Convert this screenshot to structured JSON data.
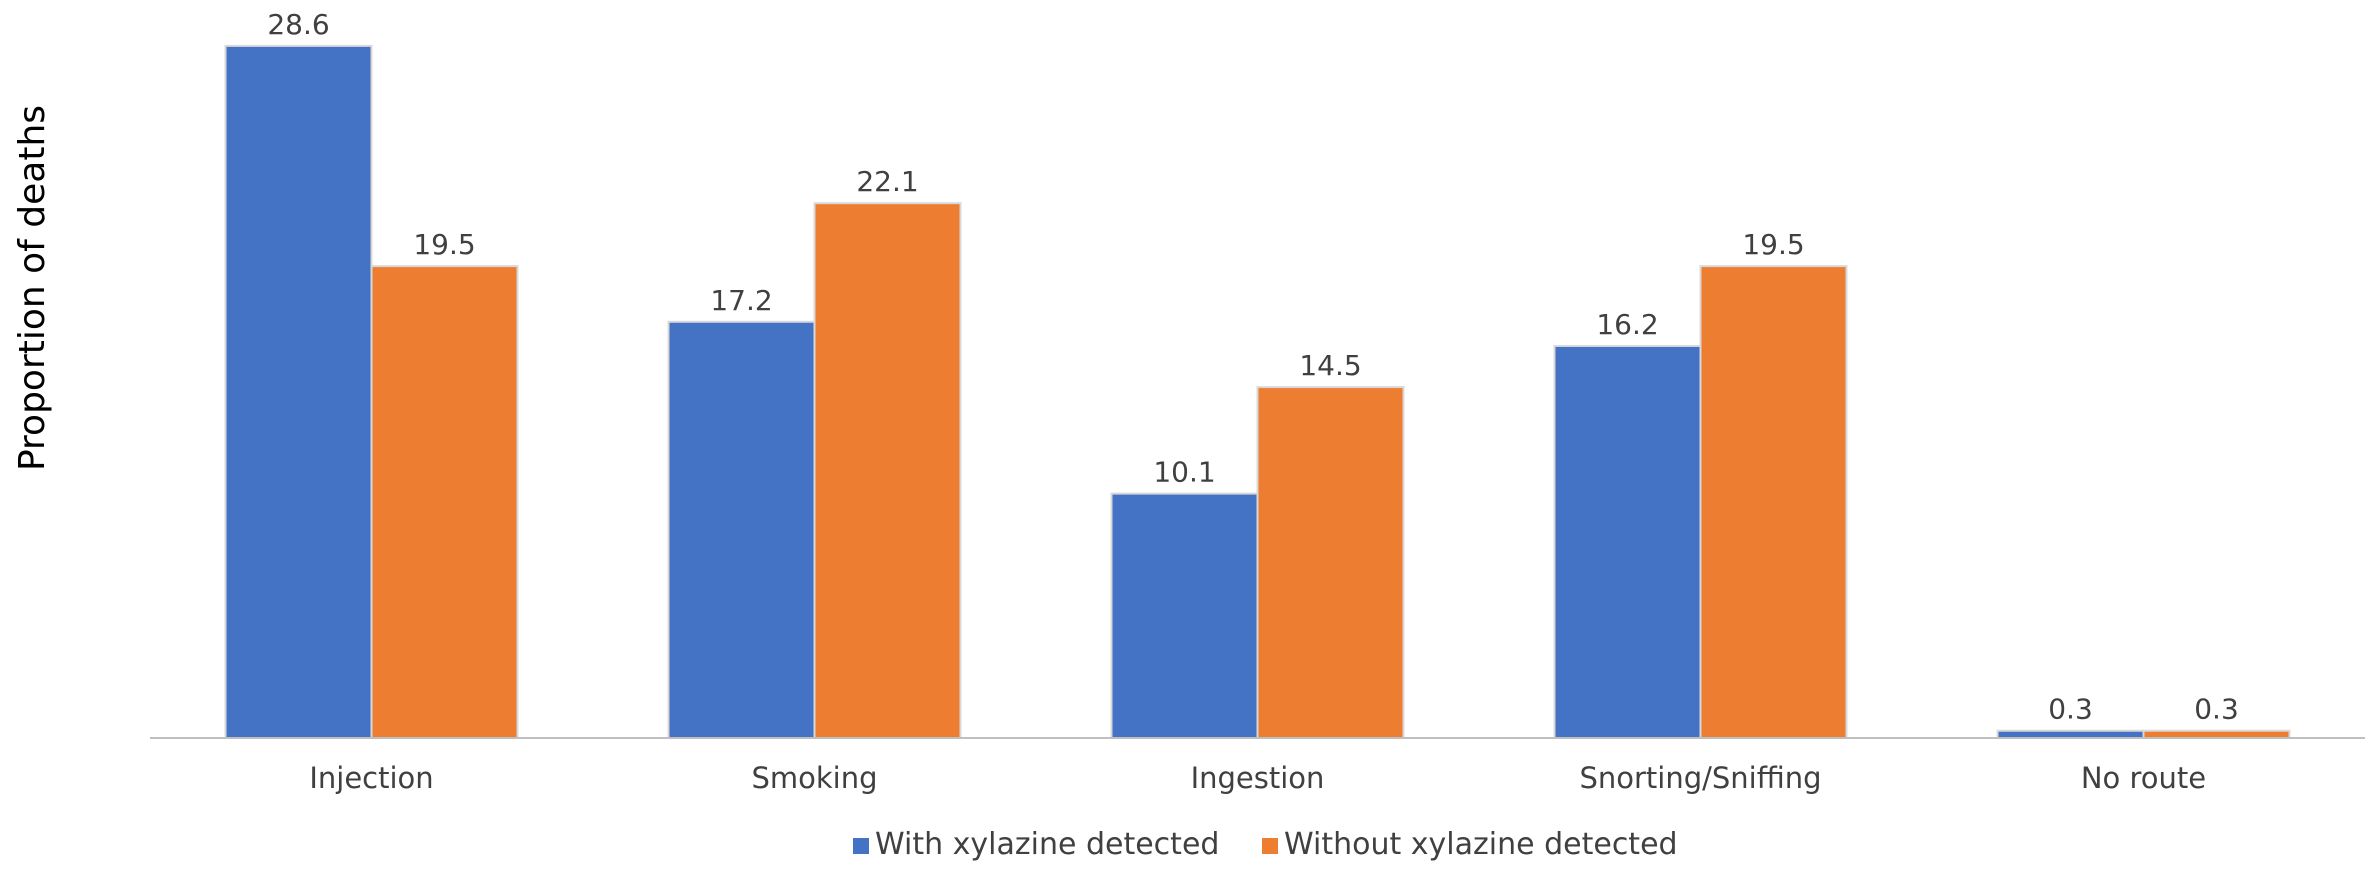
{
  "chart_data": {
    "type": "bar",
    "title": "",
    "xlabel": "",
    "ylabel": "Proportion of deaths",
    "ylim": [
      0,
      30
    ],
    "grid": false,
    "legend_position": "bottom",
    "categories": [
      "Injection",
      "Smoking",
      "Ingestion",
      "Snorting/Sniffing",
      "No route"
    ],
    "series": [
      {
        "name": "With xylazine detected",
        "color": "#4472C4",
        "values": [
          28.6,
          17.2,
          10.1,
          16.2,
          0.3
        ]
      },
      {
        "name": "Without xylazine detected",
        "color": "#ED7D31",
        "values": [
          19.5,
          22.1,
          14.5,
          19.5,
          0.3
        ]
      }
    ],
    "value_labels": [
      [
        "28.6",
        "17.2",
        "10.1",
        "16.2",
        "0.3"
      ],
      [
        "19.5",
        "22.1",
        "14.5",
        "19.5",
        "0.3"
      ]
    ]
  }
}
